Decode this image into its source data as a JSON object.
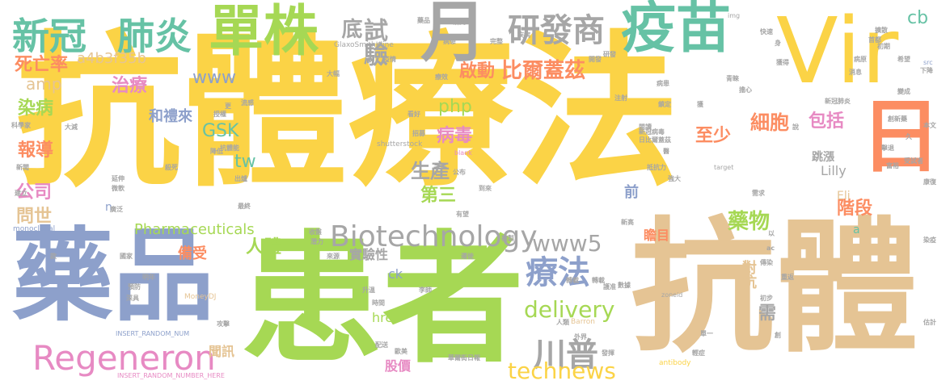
{
  "palette": {
    "yellow": "#fbd346",
    "green": "#a6d854",
    "blue": "#8da0cb",
    "tan": "#e5c494",
    "gray": "#a6a6a6",
    "teal": "#66c2a5",
    "orange": "#fc8d62",
    "pink": "#e78ac3"
  },
  "words": [
    {
      "text": "抗體療法",
      "color": "yellow"
    },
    {
      "text": "Vir",
      "color": "yellow"
    },
    {
      "text": "藥品",
      "color": "blue"
    },
    {
      "text": "患者",
      "color": "green"
    },
    {
      "text": "抗體",
      "color": "tan"
    },
    {
      "text": "單株",
      "color": "green"
    },
    {
      "text": "月",
      "color": "gray"
    },
    {
      "text": "疫苗",
      "color": "teal"
    },
    {
      "text": "日",
      "color": "orange"
    },
    {
      "text": "新冠",
      "color": "teal"
    },
    {
      "text": "肺炎",
      "color": "teal"
    },
    {
      "text": "研發商",
      "color": "gray"
    },
    {
      "text": "Regeneron",
      "color": "pink"
    },
    {
      "text": "Biotechnology",
      "color": "gray"
    },
    {
      "text": "療法",
      "color": "blue"
    },
    {
      "text": "川普",
      "color": "gray"
    },
    {
      "text": "www5",
      "color": "gray"
    },
    {
      "text": "delivery",
      "color": "green"
    },
    {
      "text": "technews",
      "color": "yellow"
    },
    {
      "text": "死亡率",
      "color": "orange"
    },
    {
      "text": "a4b3f35b",
      "color": "tan"
    },
    {
      "text": "底",
      "color": "gray"
    },
    {
      "text": "試驗",
      "color": "gray"
    },
    {
      "text": "啟動",
      "color": "orange"
    },
    {
      "text": "比爾蓋茲",
      "color": "orange"
    },
    {
      "text": "cb",
      "color": "teal"
    },
    {
      "text": "amp",
      "color": "tan"
    },
    {
      "text": "www",
      "color": "blue"
    },
    {
      "text": "治療",
      "color": "pink"
    },
    {
      "text": "php",
      "color": "green"
    },
    {
      "text": "染病",
      "color": "green"
    },
    {
      "text": "和禮來",
      "color": "blue"
    },
    {
      "text": "GSK",
      "color": "teal"
    },
    {
      "text": "報導",
      "color": "orange"
    },
    {
      "text": "tw",
      "color": "teal"
    },
    {
      "text": "病毒",
      "color": "pink"
    },
    {
      "text": "至少",
      "color": "orange"
    },
    {
      "text": "細胞",
      "color": "orange"
    },
    {
      "text": "包括",
      "color": "pink"
    },
    {
      "text": "公司",
      "color": "pink"
    },
    {
      "text": "生產",
      "color": "gray"
    },
    {
      "text": "第三",
      "color": "green"
    },
    {
      "text": "問世",
      "color": "tan"
    },
    {
      "text": "階段",
      "color": "orange"
    },
    {
      "text": "人體",
      "color": "green"
    },
    {
      "text": "前",
      "color": "blue"
    },
    {
      "text": "Pharmaceuticals",
      "color": "green"
    },
    {
      "text": "藥物",
      "color": "green"
    },
    {
      "text": "瞻目",
      "color": "orange"
    },
    {
      "text": "備受",
      "color": "orange"
    },
    {
      "text": "實驗性",
      "color": "gray"
    },
    {
      "text": "對抗",
      "color": "tan"
    },
    {
      "text": "需",
      "color": "gray"
    },
    {
      "text": "ck",
      "color": "blue"
    },
    {
      "text": "href",
      "color": "green"
    },
    {
      "text": "股價",
      "color": "pink"
    },
    {
      "text": "聞訊",
      "color": "tan"
    },
    {
      "text": "Lilly",
      "color": "gray"
    },
    {
      "text": "Eli",
      "color": "tan"
    },
    {
      "text": "跳漲",
      "color": "gray"
    },
    {
      "text": "n",
      "color": "blue"
    },
    {
      "text": "a",
      "color": "teal"
    },
    {
      "text": "生產",
      "color": "tan"
    },
    {
      "text": "shutterstock",
      "color": "gray"
    },
    {
      "text": "GlaxoSmithKline",
      "color": "gray"
    },
    {
      "text": "monoclonal",
      "color": "blue"
    },
    {
      "text": "MoneyDJ",
      "color": "tan"
    },
    {
      "text": "Barron",
      "color": "tan"
    },
    {
      "text": "antibody",
      "color": "yellow"
    },
    {
      "text": "INSERT_RANDOM_NUM",
      "color": "blue"
    },
    {
      "text": "INSERT_RANDOM_NUMBER_HERE",
      "color": "pink"
    },
    {
      "text": "zoneid",
      "color": "gray"
    },
    {
      "text": "target",
      "color": "gray"
    },
    {
      "text": "blank",
      "color": "pink"
    },
    {
      "text": "img",
      "color": "gray"
    },
    {
      "text": "src",
      "color": "blue"
    },
    {
      "text": "研究",
      "color": "gray"
    },
    {
      "text": "病患",
      "color": "gray"
    },
    {
      "text": "完整",
      "color": "gray"
    },
    {
      "text": "快速",
      "color": "gray"
    },
    {
      "text": "身",
      "color": "gray"
    },
    {
      "text": "疫情",
      "color": "gray"
    },
    {
      "text": "初期",
      "color": "gray"
    },
    {
      "text": "希望",
      "color": "gray"
    },
    {
      "text": "獲得",
      "color": "gray"
    },
    {
      "text": "病原",
      "color": "gray"
    },
    {
      "text": "下降",
      "color": "gray"
    },
    {
      "text": "注射",
      "color": "gray"
    },
    {
      "text": "消息",
      "color": "gray"
    },
    {
      "text": "抵抗力",
      "color": "gray"
    },
    {
      "text": "強大",
      "color": "gray"
    },
    {
      "text": "需求",
      "color": "gray"
    },
    {
      "text": "有望",
      "color": "gray"
    },
    {
      "text": "到來",
      "color": "gray"
    },
    {
      "text": "公布",
      "color": "gray"
    },
    {
      "text": "延伸",
      "color": "gray"
    },
    {
      "text": "新聞",
      "color": "gray"
    },
    {
      "text": "科學家",
      "color": "gray"
    },
    {
      "text": "建立",
      "color": "gray"
    },
    {
      "text": "國家",
      "color": "gray"
    },
    {
      "text": "明年",
      "color": "gray"
    },
    {
      "text": "預防",
      "color": "gray"
    },
    {
      "text": "深具",
      "color": "gray"
    },
    {
      "text": "攻擊",
      "color": "gray"
    },
    {
      "text": "配送",
      "color": "gray"
    },
    {
      "text": "歐美",
      "color": "gray"
    },
    {
      "text": "華爾街日報",
      "color": "gray"
    },
    {
      "text": "發揮",
      "color": "gray"
    },
    {
      "text": "外界",
      "color": "gray"
    },
    {
      "text": "人類",
      "color": "gray"
    },
    {
      "text": "轉載",
      "color": "gray"
    },
    {
      "text": "初步",
      "color": "gray"
    },
    {
      "text": "新高",
      "color": "gray"
    },
    {
      "text": "單一",
      "color": "gray"
    },
    {
      "text": "輕症",
      "color": "gray"
    },
    {
      "text": "估計",
      "color": "gray"
    },
    {
      "text": "重返",
      "color": "gray"
    },
    {
      "text": "染疫",
      "color": "gray"
    },
    {
      "text": "本文",
      "color": "gray"
    },
    {
      "text": "康復",
      "color": "gray"
    },
    {
      "text": "受試者",
      "color": "gray"
    },
    {
      "text": "富裕",
      "color": "gray"
    },
    {
      "text": "久",
      "color": "gray"
    },
    {
      "text": "說",
      "color": "gray"
    },
    {
      "text": "新冠病毒",
      "color": "gray"
    },
    {
      "text": "日比爾蓋茲",
      "color": "gray"
    },
    {
      "text": "閱讀",
      "color": "gray"
    },
    {
      "text": "醫",
      "color": "gray"
    },
    {
      "text": "變成",
      "color": "gray"
    },
    {
      "text": "擔心",
      "color": "gray"
    },
    {
      "text": "青睞",
      "color": "gray"
    },
    {
      "text": "鎖定",
      "color": "gray"
    },
    {
      "text": "病患",
      "color": "gray"
    },
    {
      "text": "療效",
      "color": "gray"
    },
    {
      "text": "大幅",
      "color": "gray"
    },
    {
      "text": "看好",
      "color": "gray"
    },
    {
      "text": "招募",
      "color": "gray"
    },
    {
      "text": "出爐",
      "color": "gray"
    },
    {
      "text": "抗體能",
      "color": "gray"
    },
    {
      "text": "流感",
      "color": "gray"
    },
    {
      "text": "更",
      "color": "gray"
    },
    {
      "text": "授權",
      "color": "gray"
    },
    {
      "text": "降低",
      "color": "gray"
    },
    {
      "text": "殺死",
      "color": "gray"
    },
    {
      "text": "微軟",
      "color": "gray"
    },
    {
      "text": "廣泛",
      "color": "gray"
    },
    {
      "text": "最終",
      "color": "gray"
    },
    {
      "text": "潛力",
      "color": "gray"
    },
    {
      "text": "收盤",
      "color": "gray"
    },
    {
      "text": "來源",
      "color": "gray"
    },
    {
      "text": "閱讀",
      "color": "gray"
    },
    {
      "text": "升溫",
      "color": "gray"
    },
    {
      "text": "時間",
      "color": "gray"
    },
    {
      "text": "李師",
      "color": "gray"
    },
    {
      "text": "複製",
      "color": "gray"
    },
    {
      "text": "遷徙",
      "color": "gray"
    },
    {
      "text": "護准",
      "color": "gray"
    },
    {
      "text": "數據",
      "color": "gray"
    },
    {
      "text": "轉載",
      "color": "gray"
    },
    {
      "text": "疾病",
      "color": "gray"
    },
    {
      "text": "創",
      "color": "gray"
    },
    {
      "text": "擊退",
      "color": "gray"
    },
    {
      "text": "藥品",
      "color": "gray"
    },
    {
      "text": "開發",
      "color": "gray"
    },
    {
      "text": "新冠肺炎",
      "color": "gray"
    },
    {
      "text": "首都",
      "color": "gray"
    },
    {
      "text": "擴散",
      "color": "gray"
    },
    {
      "text": "大減",
      "color": "gray"
    },
    {
      "text": "款",
      "color": "gray"
    },
    {
      "text": "傳染",
      "color": "gray"
    },
    {
      "text": "以",
      "color": "gray"
    },
    {
      "text": "發揮",
      "color": "gray"
    },
    {
      "text": "創新藥",
      "color": "gray"
    },
    {
      "text": "研發",
      "color": "gray"
    },
    {
      "text": "病原",
      "color": "gray"
    },
    {
      "text": "獲",
      "color": "gray"
    },
    {
      "text": "療程",
      "color": "gray"
    },
    {
      "text": "接受",
      "color": "gray"
    },
    {
      "text": "醫藥",
      "color": "gray"
    },
    {
      "text": "感染",
      "color": "gray"
    },
    {
      "text": "超過",
      "color": "gray"
    },
    {
      "text": "醫療",
      "color": "gray"
    },
    {
      "text": "美國",
      "color": "gray"
    },
    {
      "text": "組織",
      "color": "gray"
    },
    {
      "text": "保護",
      "color": "gray"
    },
    {
      "text": "今年",
      "color": "gray"
    },
    {
      "text": "成功",
      "color": "gray"
    },
    {
      "text": "表示",
      "color": "gray"
    },
    {
      "text": "s",
      "color": "gray"
    },
    {
      "text": "ac",
      "color": "gray"
    },
    {
      "text": "aw",
      "color": "gray"
    }
  ]
}
